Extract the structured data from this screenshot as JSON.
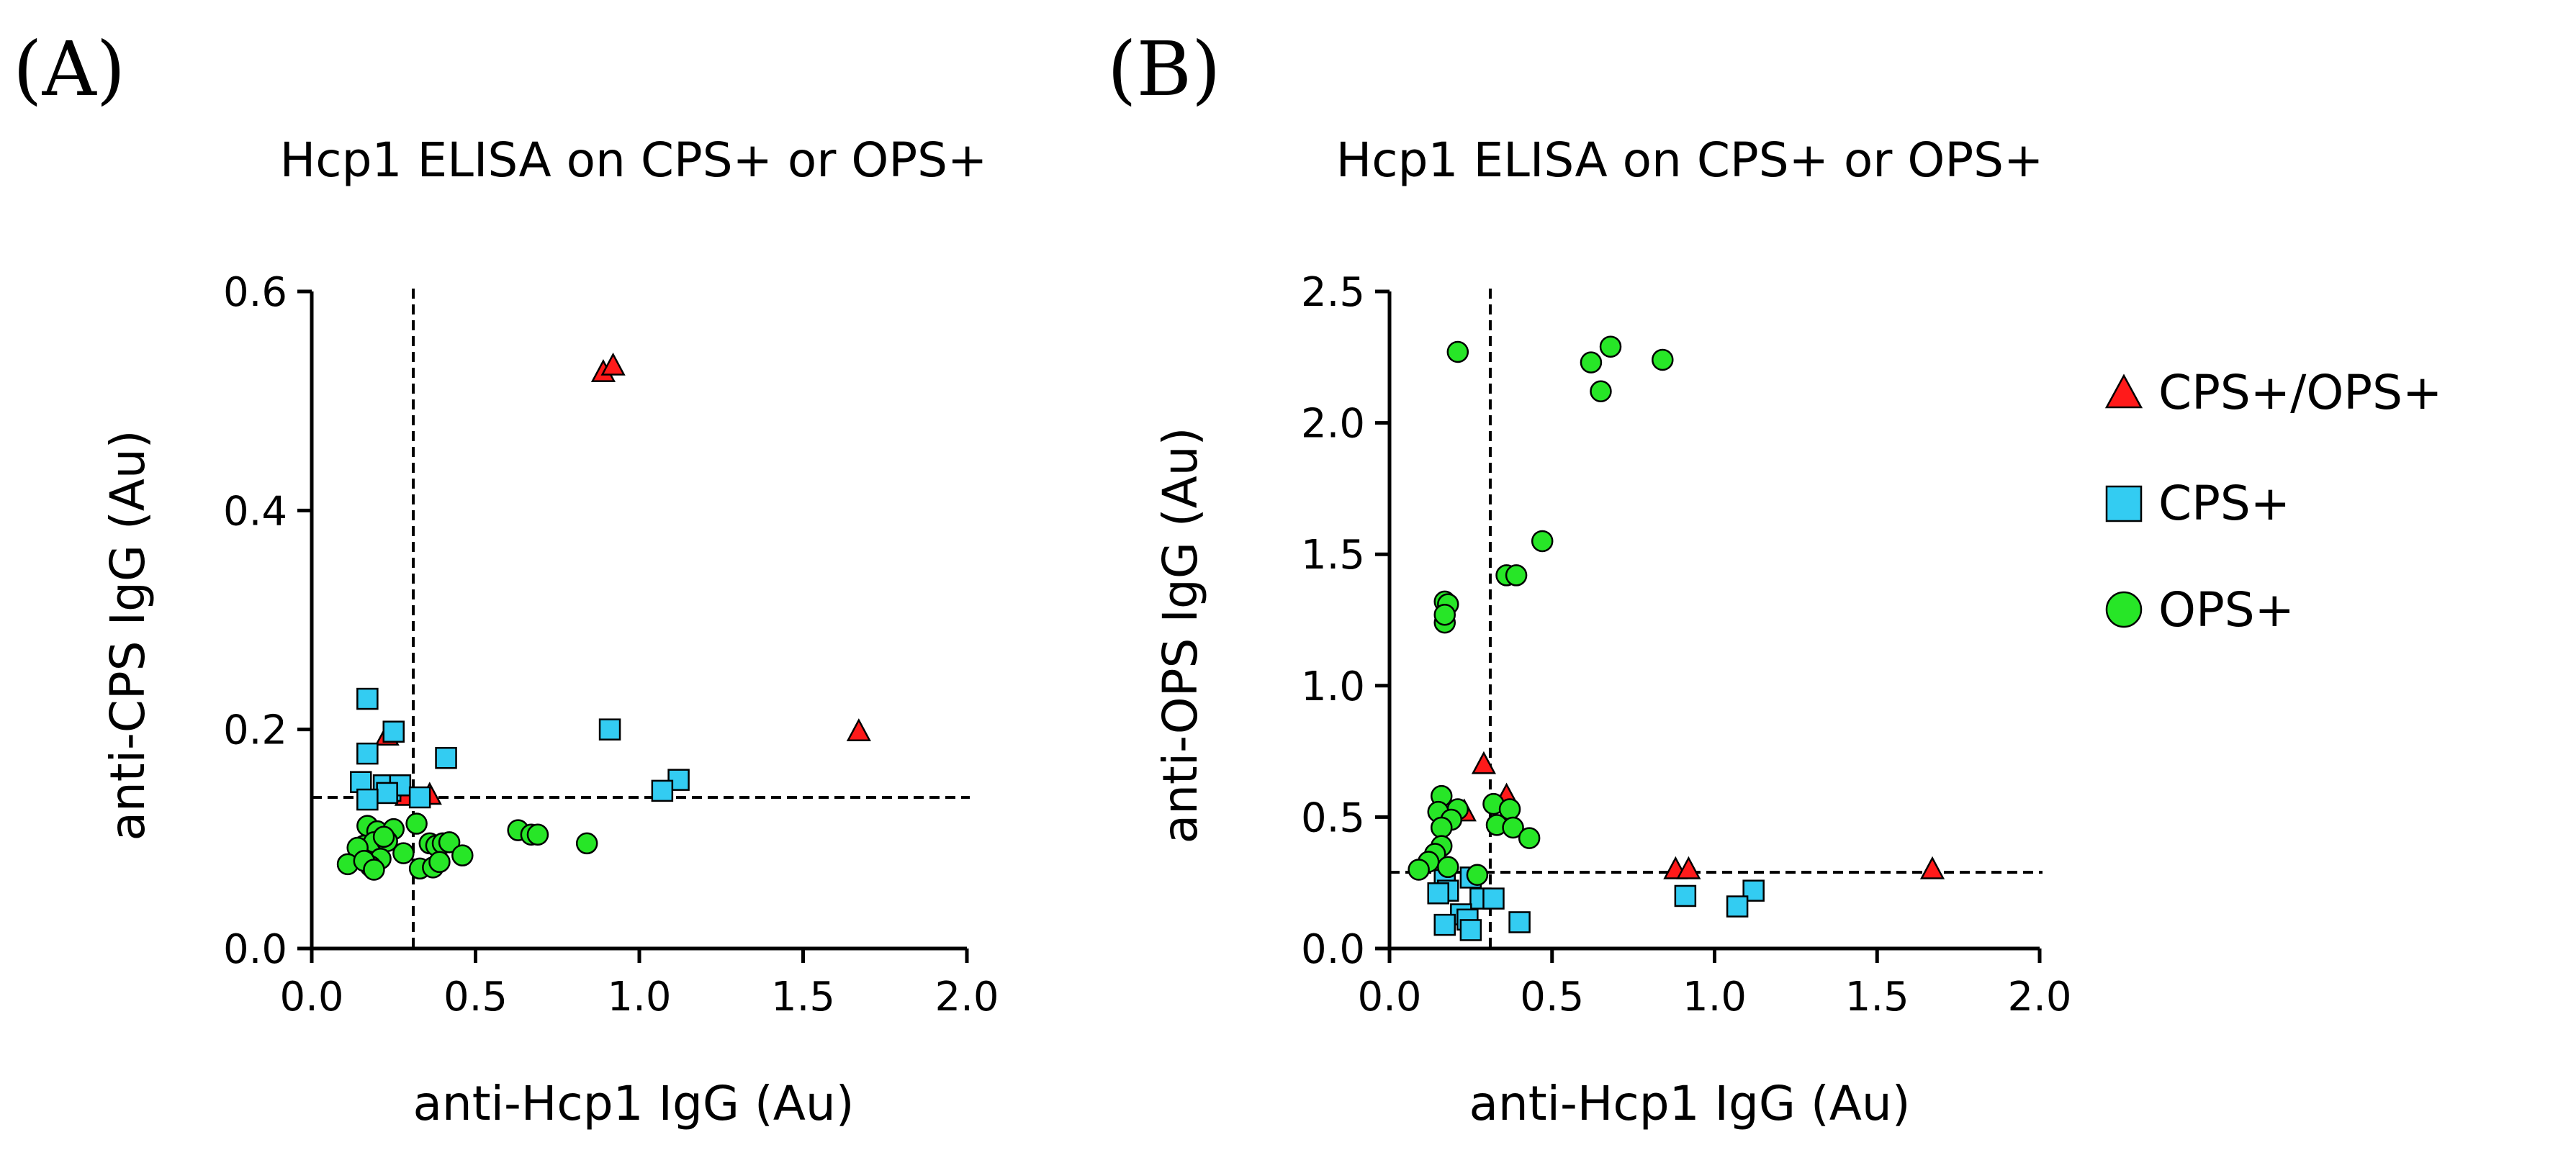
{
  "colors": {
    "CPS+/OPS+": "#ff1a1a",
    "CPS+": "#33ccf2",
    "OPS+": "#27e627"
  },
  "legend": {
    "items": [
      {
        "label": "CPS+/OPS+",
        "marker": "triangle"
      },
      {
        "label": "CPS+",
        "marker": "square"
      },
      {
        "label": "OPS+",
        "marker": "circle"
      }
    ]
  },
  "chart_data": [
    {
      "panel_label": "(A)",
      "type": "scatter",
      "title": "Hcp1 ELISA on CPS+ or OPS+",
      "xlabel": "anti-Hcp1 IgG (Au)",
      "ylabel": "anti-CPS IgG (Au)",
      "xlim": [
        0,
        2
      ],
      "ylim": [
        0,
        0.6
      ],
      "xticks": [
        0,
        0.5,
        1,
        1.5,
        2
      ],
      "xtick_labels": [
        "0.0",
        "0.5",
        "1.0",
        "1.5",
        "2.0"
      ],
      "yticks": [
        0,
        0.2,
        0.4,
        0.6
      ],
      "ytick_labels": [
        "0.0",
        "0.2",
        "0.4",
        "0.6"
      ],
      "cutoff_x": 0.31,
      "cutoff_y": 0.138,
      "series": [
        {
          "name": "CPS+/OPS+",
          "marker": "triangle",
          "points": [
            [
              0.89,
              0.526
            ],
            [
              0.92,
              0.532
            ],
            [
              1.67,
              0.198
            ],
            [
              0.23,
              0.194
            ],
            [
              0.29,
              0.139
            ],
            [
              0.36,
              0.14
            ]
          ]
        },
        {
          "name": "CPS+",
          "marker": "square",
          "points": [
            [
              0.17,
              0.228
            ],
            [
              0.25,
              0.198
            ],
            [
              0.91,
              0.2
            ],
            [
              0.17,
              0.178
            ],
            [
              0.41,
              0.174
            ],
            [
              1.12,
              0.154
            ],
            [
              1.07,
              0.144
            ],
            [
              0.15,
              0.152
            ],
            [
              0.24,
              0.144
            ],
            [
              0.22,
              0.149
            ],
            [
              0.27,
              0.149
            ],
            [
              0.23,
              0.142
            ],
            [
              0.17,
              0.136
            ],
            [
              0.33,
              0.138
            ]
          ]
        },
        {
          "name": "OPS+",
          "marker": "circle",
          "points": [
            [
              0.32,
              0.114
            ],
            [
              0.17,
              0.112
            ],
            [
              0.2,
              0.107
            ],
            [
              0.25,
              0.109
            ],
            [
              0.63,
              0.108
            ],
            [
              0.67,
              0.104
            ],
            [
              0.69,
              0.104
            ],
            [
              0.16,
              0.094
            ],
            [
              0.19,
              0.097
            ],
            [
              0.14,
              0.092
            ],
            [
              0.23,
              0.098
            ],
            [
              0.22,
              0.102
            ],
            [
              0.36,
              0.096
            ],
            [
              0.38,
              0.094
            ],
            [
              0.4,
              0.096
            ],
            [
              0.42,
              0.097
            ],
            [
              0.84,
              0.096
            ],
            [
              0.46,
              0.085
            ],
            [
              0.28,
              0.087
            ],
            [
              0.21,
              0.082
            ],
            [
              0.18,
              0.075
            ],
            [
              0.11,
              0.077
            ],
            [
              0.16,
              0.08
            ],
            [
              0.19,
              0.072
            ],
            [
              0.33,
              0.073
            ],
            [
              0.37,
              0.074
            ],
            [
              0.39,
              0.079
            ]
          ]
        }
      ]
    },
    {
      "panel_label": "(B)",
      "type": "scatter",
      "title": "Hcp1 ELISA on CPS+ or OPS+",
      "xlabel": "anti-Hcp1 IgG (Au)",
      "ylabel": "anti-OPS IgG (Au)",
      "xlim": [
        0,
        2
      ],
      "ylim": [
        0,
        2.5
      ],
      "xticks": [
        0,
        0.5,
        1,
        1.5,
        2
      ],
      "xtick_labels": [
        "0.0",
        "0.5",
        "1.0",
        "1.5",
        "2.0"
      ],
      "yticks": [
        0,
        0.5,
        1,
        1.5,
        2,
        2.5
      ],
      "ytick_labels": [
        "0.0",
        "0.5",
        "1.0",
        "1.5",
        "2.0",
        "2.5"
      ],
      "cutoff_x": 0.31,
      "cutoff_y": 0.29,
      "series": [
        {
          "name": "CPS+/OPS+",
          "marker": "triangle",
          "points": [
            [
              0.29,
              0.7
            ],
            [
              0.36,
              0.58
            ],
            [
              0.88,
              0.3
            ],
            [
              0.92,
              0.3
            ],
            [
              1.67,
              0.3
            ],
            [
              0.23,
              0.52
            ]
          ]
        },
        {
          "name": "CPS+",
          "marker": "square",
          "points": [
            [
              0.17,
              0.26
            ],
            [
              0.25,
              0.27
            ],
            [
              0.18,
              0.22
            ],
            [
              0.15,
              0.21
            ],
            [
              0.28,
              0.19
            ],
            [
              0.32,
              0.19
            ],
            [
              0.91,
              0.2
            ],
            [
              1.12,
              0.22
            ],
            [
              1.07,
              0.16
            ],
            [
              0.22,
              0.13
            ],
            [
              0.24,
              0.11
            ],
            [
              0.4,
              0.1
            ],
            [
              0.17,
              0.09
            ],
            [
              0.25,
              0.07
            ]
          ]
        },
        {
          "name": "OPS+",
          "marker": "circle",
          "points": [
            [
              0.21,
              2.27
            ],
            [
              0.62,
              2.23
            ],
            [
              0.68,
              2.29
            ],
            [
              0.84,
              2.24
            ],
            [
              0.65,
              2.12
            ],
            [
              0.47,
              1.55
            ],
            [
              0.36,
              1.42
            ],
            [
              0.39,
              1.42
            ],
            [
              0.17,
              1.32
            ],
            [
              0.18,
              1.31
            ],
            [
              0.17,
              1.24
            ],
            [
              0.17,
              1.27
            ],
            [
              0.16,
              0.58
            ],
            [
              0.32,
              0.55
            ],
            [
              0.37,
              0.53
            ],
            [
              0.21,
              0.53
            ],
            [
              0.15,
              0.52
            ],
            [
              0.19,
              0.49
            ],
            [
              0.16,
              0.46
            ],
            [
              0.33,
              0.47
            ],
            [
              0.38,
              0.46
            ],
            [
              0.43,
              0.42
            ],
            [
              0.16,
              0.39
            ],
            [
              0.14,
              0.36
            ],
            [
              0.12,
              0.33
            ],
            [
              0.18,
              0.31
            ],
            [
              0.09,
              0.3
            ],
            [
              0.27,
              0.28
            ]
          ]
        }
      ]
    }
  ]
}
